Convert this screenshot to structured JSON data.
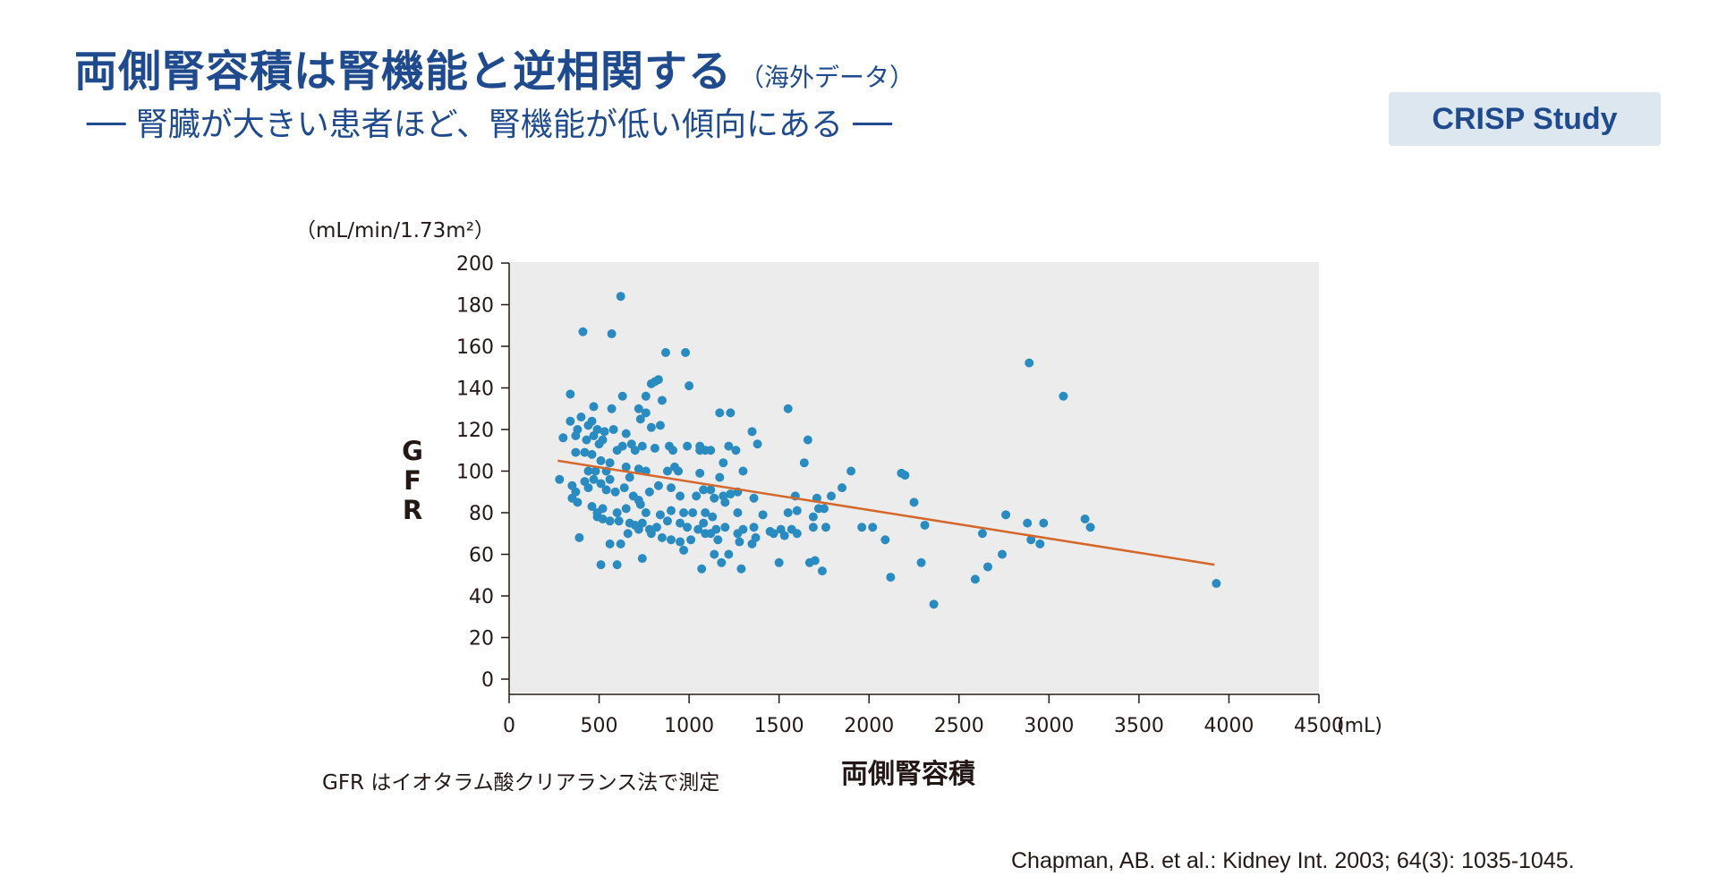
{
  "header": {
    "title": "両側腎容積は腎機能と逆相関する",
    "title_note": "（海外データ）",
    "subtitle": "── 腎臓が大きい患者ほど、腎機能が低い傾向にある ──",
    "badge": "CRISP Study"
  },
  "colors": {
    "title": "#1f4b8e",
    "badge_bg": "#dde7f0",
    "plot_bg": "#ececec",
    "point": "#2a8bc0",
    "trend": "#d4682b"
  },
  "footnote": "GFR はイオタラム酸クリアランス法で測定",
  "citation": "Chapman, AB. et al.: Kidney Int. 2003; 64(3): 1035-1045.",
  "chart_data": {
    "type": "scatter",
    "title": "",
    "xlabel": "両側腎容積",
    "ylabel": "GFR",
    "x_unit": "(mL)",
    "y_unit": "（mL/min/1.73m²）",
    "xlim": [
      0,
      4500
    ],
    "ylim": [
      0,
      200
    ],
    "x_ticks": [
      0,
      500,
      1000,
      1500,
      2000,
      2500,
      3000,
      3500,
      4000,
      4500
    ],
    "y_ticks": [
      0,
      20,
      40,
      60,
      80,
      100,
      120,
      140,
      160,
      180,
      200
    ],
    "grid": false,
    "trendline": {
      "x": [
        270,
        3920
      ],
      "y": [
        105,
        55
      ]
    },
    "points": [
      [
        620,
        184
      ],
      [
        410,
        167
      ],
      [
        570,
        166
      ],
      [
        870,
        157
      ],
      [
        980,
        157
      ],
      [
        2890,
        152
      ],
      [
        810,
        143
      ],
      [
        830,
        144
      ],
      [
        790,
        142
      ],
      [
        1000,
        141
      ],
      [
        3080,
        136
      ],
      [
        340,
        137
      ],
      [
        630,
        136
      ],
      [
        760,
        136
      ],
      [
        1550,
        130
      ],
      [
        850,
        134
      ],
      [
        720,
        130
      ],
      [
        570,
        130
      ],
      [
        470,
        131
      ],
      [
        1170,
        128
      ],
      [
        1230,
        128
      ],
      [
        1660,
        115
      ],
      [
        730,
        125
      ],
      [
        760,
        128
      ],
      [
        400,
        126
      ],
      [
        460,
        124
      ],
      [
        340,
        124
      ],
      [
        380,
        120
      ],
      [
        440,
        122
      ],
      [
        490,
        120
      ],
      [
        530,
        119
      ],
      [
        580,
        120
      ],
      [
        650,
        118
      ],
      [
        790,
        121
      ],
      [
        840,
        122
      ],
      [
        1350,
        119
      ],
      [
        470,
        117
      ],
      [
        500,
        113
      ],
      [
        520,
        115
      ],
      [
        300,
        116
      ],
      [
        370,
        117
      ],
      [
        430,
        115
      ],
      [
        680,
        113
      ],
      [
        700,
        110
      ],
      [
        890,
        112
      ],
      [
        990,
        112
      ],
      [
        1060,
        112
      ],
      [
        1090,
        110
      ],
      [
        1380,
        113
      ],
      [
        370,
        109
      ],
      [
        420,
        109
      ],
      [
        460,
        108
      ],
      [
        510,
        105
      ],
      [
        560,
        104
      ],
      [
        600,
        110
      ],
      [
        630,
        112
      ],
      [
        740,
        112
      ],
      [
        810,
        111
      ],
      [
        910,
        110
      ],
      [
        1060,
        110
      ],
      [
        1120,
        110
      ],
      [
        1220,
        112
      ],
      [
        1260,
        110
      ],
      [
        440,
        100
      ],
      [
        480,
        100
      ],
      [
        540,
        100
      ],
      [
        560,
        96
      ],
      [
        650,
        102
      ],
      [
        670,
        97
      ],
      [
        720,
        101
      ],
      [
        760,
        100
      ],
      [
        880,
        100
      ],
      [
        920,
        102
      ],
      [
        940,
        100
      ],
      [
        1060,
        99
      ],
      [
        1190,
        104
      ],
      [
        1170,
        97
      ],
      [
        1300,
        100
      ],
      [
        1640,
        104
      ],
      [
        1900,
        100
      ],
      [
        2180,
        99
      ],
      [
        2200,
        98
      ],
      [
        280,
        96
      ],
      [
        350,
        93
      ],
      [
        370,
        90
      ],
      [
        420,
        95
      ],
      [
        440,
        92
      ],
      [
        470,
        96
      ],
      [
        510,
        94
      ],
      [
        540,
        91
      ],
      [
        590,
        90
      ],
      [
        640,
        92
      ],
      [
        690,
        88
      ],
      [
        720,
        86
      ],
      [
        780,
        90
      ],
      [
        830,
        93
      ],
      [
        900,
        92
      ],
      [
        950,
        88
      ],
      [
        1040,
        88
      ],
      [
        1080,
        91
      ],
      [
        1120,
        91
      ],
      [
        1140,
        87
      ],
      [
        1190,
        88
      ],
      [
        1230,
        89
      ],
      [
        1270,
        90
      ],
      [
        1360,
        87
      ],
      [
        1590,
        88
      ],
      [
        1710,
        87
      ],
      [
        1790,
        88
      ],
      [
        1850,
        92
      ],
      [
        2250,
        85
      ],
      [
        350,
        87
      ],
      [
        380,
        85
      ],
      [
        460,
        83
      ],
      [
        490,
        80
      ],
      [
        520,
        82
      ],
      [
        600,
        80
      ],
      [
        650,
        82
      ],
      [
        730,
        84
      ],
      [
        760,
        80
      ],
      [
        840,
        79
      ],
      [
        900,
        81
      ],
      [
        970,
        80
      ],
      [
        1020,
        80
      ],
      [
        1090,
        80
      ],
      [
        1130,
        78
      ],
      [
        1200,
        85
      ],
      [
        1270,
        80
      ],
      [
        1410,
        79
      ],
      [
        1550,
        80
      ],
      [
        1600,
        81
      ],
      [
        1720,
        82
      ],
      [
        1750,
        82
      ],
      [
        1690,
        78
      ],
      [
        2760,
        79
      ],
      [
        3200,
        77
      ],
      [
        490,
        78
      ],
      [
        520,
        77
      ],
      [
        560,
        76
      ],
      [
        610,
        76
      ],
      [
        670,
        75
      ],
      [
        700,
        74
      ],
      [
        740,
        75
      ],
      [
        780,
        72
      ],
      [
        820,
        73
      ],
      [
        880,
        76
      ],
      [
        950,
        75
      ],
      [
        990,
        73
      ],
      [
        1050,
        72
      ],
      [
        1080,
        75
      ],
      [
        1150,
        72
      ],
      [
        1200,
        73
      ],
      [
        1300,
        72
      ],
      [
        1360,
        73
      ],
      [
        1450,
        71
      ],
      [
        1510,
        72
      ],
      [
        1570,
        72
      ],
      [
        1690,
        73
      ],
      [
        1760,
        73
      ],
      [
        1960,
        73
      ],
      [
        2020,
        73
      ],
      [
        2310,
        74
      ],
      [
        2880,
        75
      ],
      [
        2970,
        75
      ],
      [
        3230,
        73
      ],
      [
        1090,
        70
      ],
      [
        1120,
        70
      ],
      [
        1270,
        70
      ],
      [
        1370,
        68
      ],
      [
        1530,
        69
      ],
      [
        390,
        68
      ],
      [
        660,
        70
      ],
      [
        720,
        72
      ],
      [
        790,
        70
      ],
      [
        850,
        68
      ],
      [
        900,
        67
      ],
      [
        950,
        66
      ],
      [
        1010,
        67
      ],
      [
        1160,
        67
      ],
      [
        1280,
        66
      ],
      [
        1350,
        65
      ],
      [
        1470,
        70
      ],
      [
        1600,
        70
      ],
      [
        2090,
        67
      ],
      [
        2630,
        70
      ],
      [
        2900,
        67
      ],
      [
        2950,
        65
      ],
      [
        970,
        62
      ],
      [
        1140,
        60
      ],
      [
        1220,
        60
      ],
      [
        560,
        65
      ],
      [
        620,
        65
      ],
      [
        740,
        58
      ],
      [
        510,
        55
      ],
      [
        600,
        55
      ],
      [
        1070,
        53
      ],
      [
        1180,
        56
      ],
      [
        1290,
        53
      ],
      [
        1500,
        56
      ],
      [
        1670,
        56
      ],
      [
        1700,
        57
      ],
      [
        1740,
        52
      ],
      [
        2120,
        49
      ],
      [
        2290,
        56
      ],
      [
        2590,
        48
      ],
      [
        2660,
        54
      ],
      [
        2740,
        60
      ],
      [
        2360,
        36
      ],
      [
        3930,
        46
      ]
    ]
  }
}
